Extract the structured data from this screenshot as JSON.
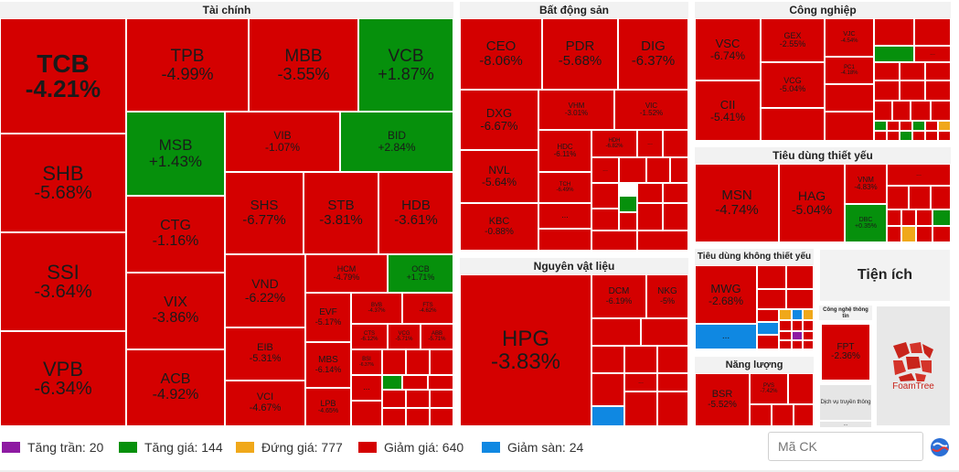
{
  "sectors": {
    "tai_chinh": "Tài chính",
    "bat_dong_san": "Bất động sản",
    "cong_nghiep": "Công nghiệp",
    "nguyen_vat_lieu": "Nguyên vật liệu",
    "tieu_dung_thiet_yeu": "Tiêu dùng thiết yếu",
    "tieu_dung_khong_thiet_yeu": "Tiêu dùng không thiết yếu",
    "tien_ich": "Tiện ích",
    "nang_luong": "Năng lượng",
    "cong_nghe_thong_tin": "Công nghệ thông tin",
    "dich_vu_truyen_thong": "Dịch vụ truyền thông"
  },
  "tiles": {
    "TCB": {
      "s": "TCB",
      "p": "-4.21%"
    },
    "SHB": {
      "s": "SHB",
      "p": "-5.68%"
    },
    "SSI": {
      "s": "SSI",
      "p": "-3.64%"
    },
    "VPB": {
      "s": "VPB",
      "p": "-6.34%"
    },
    "TPB": {
      "s": "TPB",
      "p": "-4.99%"
    },
    "MBB": {
      "s": "MBB",
      "p": "-3.55%"
    },
    "VCB": {
      "s": "VCB",
      "p": "+1.87%"
    },
    "MSB": {
      "s": "MSB",
      "p": "+1.43%"
    },
    "VIB": {
      "s": "VIB",
      "p": "-1.07%"
    },
    "BID": {
      "s": "BID",
      "p": "+2.84%"
    },
    "CTG": {
      "s": "CTG",
      "p": "-1.16%"
    },
    "VIX": {
      "s": "VIX",
      "p": "-3.86%"
    },
    "ACB": {
      "s": "ACB",
      "p": "-4.92%"
    },
    "SHS": {
      "s": "SHS",
      "p": "-6.77%"
    },
    "STB": {
      "s": "STB",
      "p": "-3.81%"
    },
    "HDB": {
      "s": "HDB",
      "p": "-3.61%"
    },
    "VND": {
      "s": "VND",
      "p": "-6.22%"
    },
    "HCM": {
      "s": "HCM",
      "p": "-4.79%"
    },
    "OCB": {
      "s": "OCB",
      "p": "+1.71%"
    },
    "EIB": {
      "s": "EIB",
      "p": "-5.31%"
    },
    "EVF": {
      "s": "EVF",
      "p": "-5.17%"
    },
    "BVB": {
      "s": "BVB",
      "p": "-4.37%"
    },
    "FTS": {
      "s": "FTS",
      "p": "-4.62%"
    },
    "CTS": {
      "s": "CTS",
      "p": "-6.12%"
    },
    "VCG": {
      "s": "VCG",
      "p": "-5.71%"
    },
    "ABB": {
      "s": "ABB",
      "p": "-5.71%"
    },
    "MBS": {
      "s": "MBS",
      "p": "-6.14%"
    },
    "BSI": {
      "s": "BSI",
      "p": "-6.37%"
    },
    "VCI": {
      "s": "VCI",
      "p": "-4.67%"
    },
    "LPB": {
      "s": "LPB",
      "p": "-4.65%"
    },
    "CEO": {
      "s": "CEO",
      "p": "-8.06%"
    },
    "PDR": {
      "s": "PDR",
      "p": "-5.68%"
    },
    "DIG": {
      "s": "DIG",
      "p": "-6.37%"
    },
    "DXG": {
      "s": "DXG",
      "p": "-6.67%"
    },
    "VHM": {
      "s": "VHM",
      "p": "-3.01%"
    },
    "VIC": {
      "s": "VIC",
      "p": "-1.52%"
    },
    "NVL": {
      "s": "NVL",
      "p": "-5.64%"
    },
    "HDC": {
      "s": "HDC",
      "p": "-6.11%"
    },
    "HDH": {
      "s": "HDH",
      "p": "-6.82%"
    },
    "TCH": {
      "s": "TCH",
      "p": "-6.49%"
    },
    "KBC": {
      "s": "KBC",
      "p": "-0.88%"
    },
    "VSC": {
      "s": "VSC",
      "p": "-6.74%"
    },
    "GEX": {
      "s": "GEX",
      "p": "-2.55%"
    },
    "VJC": {
      "s": "VJC",
      "p": "-4.54%"
    },
    "CII": {
      "s": "CII",
      "p": "-5.41%"
    },
    "VCG2": {
      "s": "VCG",
      "p": "-5.04%"
    },
    "PC1": {
      "s": "PC1",
      "p": "-4.18%"
    },
    "HPG": {
      "s": "HPG",
      "p": "-3.83%"
    },
    "DCM": {
      "s": "DCM",
      "p": "-6.19%"
    },
    "NKG": {
      "s": "NKG",
      "p": "-5%"
    },
    "MSN": {
      "s": "MSN",
      "p": "-4.74%"
    },
    "HAG": {
      "s": "HAG",
      "p": "-5.04%"
    },
    "VNM": {
      "s": "VNM",
      "p": "-4.83%"
    },
    "DBC": {
      "s": "DBC",
      "p": "+0.35%"
    },
    "MWG": {
      "s": "MWG",
      "p": "-2.68%"
    },
    "BSR": {
      "s": "BSR",
      "p": "-5.52%"
    },
    "PVS": {
      "s": "PVS",
      "p": "-7.42%"
    },
    "FPT": {
      "s": "FPT",
      "p": "-2.36%"
    }
  },
  "more": "...",
  "foamtree": "FoamTree",
  "legend": {
    "ceiling": "Tăng trần: 20",
    "up": "Tăng giá: 144",
    "flat": "Đứng giá: 777",
    "down": "Giảm giá: 640",
    "floor": "Giảm sàn: 24"
  },
  "search": {
    "placeholder": "Mã CK"
  },
  "colors": {
    "down": "#d40000",
    "up": "#06900c",
    "flat": "#f0a81a",
    "floor": "#0f88e2",
    "ceiling": "#8e1aa2"
  }
}
